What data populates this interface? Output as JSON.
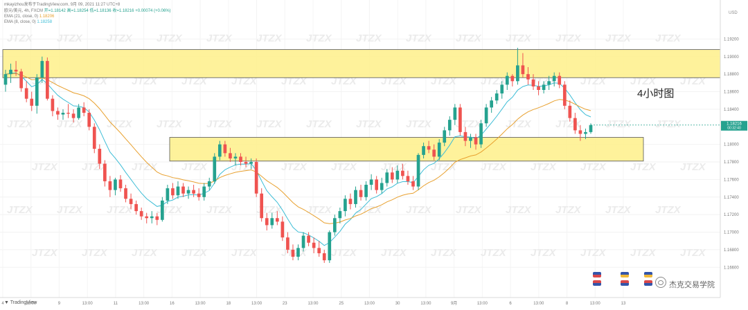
{
  "header": {
    "line1_publisher": "mkayizhou发布于TradingView.com,",
    "line1_date": "9月 09, 2021 11:27 UTC+8",
    "line2_symbol": "欧元/美元, 4h, FXCM",
    "line2_open": "开=1.18142",
    "line2_high": "高=1.18254",
    "line2_low": "低=1.18136",
    "line2_close": "收=1.18216",
    "line2_change": "+0.00074 (+0.06%)",
    "line3_ema21_label": "EMA (21, close, 0)",
    "line3_ema21_value": "1.18206",
    "line4_ema8_label": "EMA (8, close, 0)",
    "line4_ema8_value": "1.18258"
  },
  "annotation": "4小时图",
  "footer_brand": "TradingView",
  "watermark": {
    "text": "JTZX",
    "brand_text": "杰克交易学院"
  },
  "price_badge": {
    "price": "1.18216",
    "countdown": "00:32:40"
  },
  "colors": {
    "up": "#25a28f",
    "down": "#ef5350",
    "ema8": "#3dbdd6",
    "ema21": "#e8a02e",
    "zone_fill": "#fef08a",
    "zone_border": "#555555"
  },
  "chart_data": {
    "type": "candlestick",
    "symbol": "欧元/美元",
    "timeframe": "4h",
    "ylim": [
      1.1635,
      1.1955
    ],
    "scale_unit": "USD",
    "y_ticks": [
      "1.19200",
      "1.19000",
      "1.18800",
      "1.18600",
      "1.18400",
      "1.18000",
      "1.17800",
      "1.17600",
      "1.17400",
      "1.17200",
      "1.17000",
      "1.16800",
      "1.16600"
    ],
    "x_ticks": [
      "4",
      "13:00",
      "9",
      "13:00",
      "11",
      "13:00",
      "16",
      "13:00",
      "18",
      "13:00",
      "23",
      "13:00",
      "25",
      "13:00",
      "30",
      "13:00",
      "9月",
      "13:00",
      "6",
      "13:00",
      "8",
      "13:00",
      "13"
    ],
    "zones": [
      {
        "name": "resistance",
        "high": 1.1908,
        "low": 1.1876
      },
      {
        "name": "support",
        "high": 1.1808,
        "low": 1.1781
      }
    ],
    "ema": [
      {
        "name": "EMA (8, close, 0)"
      },
      {
        "name": "EMA (21, close, 0)"
      }
    ],
    "ohlc": [
      [
        1.1868,
        1.1885,
        1.186,
        1.188
      ],
      [
        1.188,
        1.1892,
        1.187,
        1.1885
      ],
      [
        1.1885,
        1.1895,
        1.1878,
        1.1883
      ],
      [
        1.1883,
        1.1886,
        1.186,
        1.1864
      ],
      [
        1.1864,
        1.1872,
        1.1848,
        1.1852
      ],
      [
        1.1852,
        1.186,
        1.1838,
        1.1844
      ],
      [
        1.1844,
        1.188,
        1.1835,
        1.1876
      ],
      [
        1.1876,
        1.19,
        1.187,
        1.1895
      ],
      [
        1.1895,
        1.1899,
        1.185,
        1.1852
      ],
      [
        1.1852,
        1.1856,
        1.1832,
        1.1838
      ],
      [
        1.1838,
        1.1842,
        1.1828,
        1.1834
      ],
      [
        1.1834,
        1.184,
        1.1828,
        1.1836
      ],
      [
        1.1836,
        1.1846,
        1.183,
        1.1835
      ],
      [
        1.1835,
        1.184,
        1.1825,
        1.183
      ],
      [
        1.183,
        1.1846,
        1.1828,
        1.1842
      ],
      [
        1.1842,
        1.1848,
        1.1832,
        1.1836
      ],
      [
        1.1836,
        1.184,
        1.1816,
        1.182
      ],
      [
        1.182,
        1.1824,
        1.179,
        1.1795
      ],
      [
        1.1795,
        1.18,
        1.1772,
        1.1778
      ],
      [
        1.1778,
        1.1782,
        1.1752,
        1.1758
      ],
      [
        1.1758,
        1.1764,
        1.174,
        1.1748
      ],
      [
        1.1748,
        1.1762,
        1.1742,
        1.176
      ],
      [
        1.176,
        1.1765,
        1.1746,
        1.175
      ],
      [
        1.175,
        1.1754,
        1.1734,
        1.1738
      ],
      [
        1.1738,
        1.1744,
        1.1726,
        1.1732
      ],
      [
        1.1732,
        1.1736,
        1.172,
        1.1724
      ],
      [
        1.1724,
        1.1728,
        1.1714,
        1.1718
      ],
      [
        1.1718,
        1.1722,
        1.171,
        1.1716
      ],
      [
        1.1716,
        1.1724,
        1.171,
        1.1718
      ],
      [
        1.1718,
        1.1722,
        1.1708,
        1.1714
      ],
      [
        1.1714,
        1.174,
        1.1712,
        1.1736
      ],
      [
        1.1736,
        1.1754,
        1.1732,
        1.175
      ],
      [
        1.175,
        1.1756,
        1.1738,
        1.1742
      ],
      [
        1.1742,
        1.1758,
        1.1738,
        1.1752
      ],
      [
        1.1752,
        1.1756,
        1.174,
        1.1744
      ],
      [
        1.1744,
        1.1752,
        1.1738,
        1.1748
      ],
      [
        1.1748,
        1.1754,
        1.174,
        1.1744
      ],
      [
        1.1744,
        1.175,
        1.1736,
        1.174
      ],
      [
        1.174,
        1.1756,
        1.1736,
        1.1752
      ],
      [
        1.1752,
        1.1762,
        1.1748,
        1.1758
      ],
      [
        1.1758,
        1.179,
        1.1755,
        1.1786
      ],
      [
        1.1786,
        1.1804,
        1.1782,
        1.18
      ],
      [
        1.18,
        1.1804,
        1.1786,
        1.179
      ],
      [
        1.179,
        1.1796,
        1.178,
        1.1784
      ],
      [
        1.1784,
        1.179,
        1.1776,
        1.1786
      ],
      [
        1.1786,
        1.179,
        1.1776,
        1.178
      ],
      [
        1.178,
        1.1786,
        1.1774,
        1.1778
      ],
      [
        1.1778,
        1.1784,
        1.1772,
        1.178
      ],
      [
        1.178,
        1.1784,
        1.174,
        1.1744
      ],
      [
        1.1744,
        1.175,
        1.1712,
        1.1716
      ],
      [
        1.1716,
        1.1722,
        1.1702,
        1.1708
      ],
      [
        1.1708,
        1.1722,
        1.1704,
        1.1716
      ],
      [
        1.1716,
        1.1724,
        1.1708,
        1.1712
      ],
      [
        1.1712,
        1.1718,
        1.169,
        1.1694
      ],
      [
        1.1694,
        1.17,
        1.1676,
        1.168
      ],
      [
        1.168,
        1.1686,
        1.1668,
        1.1672
      ],
      [
        1.1672,
        1.1686,
        1.1668,
        1.1682
      ],
      [
        1.1682,
        1.17,
        1.1678,
        1.1696
      ],
      [
        1.1696,
        1.17,
        1.1684,
        1.1688
      ],
      [
        1.1688,
        1.1694,
        1.1676,
        1.1682
      ],
      [
        1.1682,
        1.169,
        1.1672,
        1.1676
      ],
      [
        1.1676,
        1.168,
        1.1665,
        1.1668
      ],
      [
        1.1668,
        1.1702,
        1.1665,
        1.17
      ],
      [
        1.17,
        1.172,
        1.1696,
        1.1716
      ],
      [
        1.1716,
        1.1728,
        1.171,
        1.1724
      ],
      [
        1.1724,
        1.1742,
        1.1718,
        1.1738
      ],
      [
        1.1738,
        1.1744,
        1.1726,
        1.1732
      ],
      [
        1.1732,
        1.1752,
        1.1728,
        1.1748
      ],
      [
        1.1748,
        1.1754,
        1.1736,
        1.174
      ],
      [
        1.174,
        1.1758,
        1.1736,
        1.1754
      ],
      [
        1.1754,
        1.1766,
        1.1748,
        1.176
      ],
      [
        1.176,
        1.1764,
        1.1744,
        1.1748
      ],
      [
        1.1748,
        1.1762,
        1.1744,
        1.1756
      ],
      [
        1.1756,
        1.1772,
        1.1752,
        1.1768
      ],
      [
        1.1768,
        1.1774,
        1.1756,
        1.176
      ],
      [
        1.176,
        1.1776,
        1.1756,
        1.177
      ],
      [
        1.177,
        1.1778,
        1.176,
        1.1764
      ],
      [
        1.1764,
        1.177,
        1.1754,
        1.1758
      ],
      [
        1.1758,
        1.1764,
        1.1748,
        1.1752
      ],
      [
        1.1752,
        1.179,
        1.1748,
        1.1788
      ],
      [
        1.1788,
        1.1802,
        1.1784,
        1.1798
      ],
      [
        1.1798,
        1.1804,
        1.179,
        1.1794
      ],
      [
        1.1794,
        1.18,
        1.1782,
        1.1786
      ],
      [
        1.1786,
        1.1806,
        1.1782,
        1.1802
      ],
      [
        1.1802,
        1.182,
        1.1798,
        1.1816
      ],
      [
        1.1816,
        1.1832,
        1.181,
        1.1828
      ],
      [
        1.1828,
        1.1846,
        1.1822,
        1.1842
      ],
      [
        1.1842,
        1.1846,
        1.181,
        1.1814
      ],
      [
        1.1814,
        1.182,
        1.1798,
        1.1804
      ],
      [
        1.1804,
        1.1812,
        1.1796,
        1.1808
      ],
      [
        1.1808,
        1.1812,
        1.1794,
        1.18
      ],
      [
        1.18,
        1.1828,
        1.1796,
        1.1824
      ],
      [
        1.1824,
        1.1846,
        1.182,
        1.1842
      ],
      [
        1.1842,
        1.1854,
        1.1836,
        1.185
      ],
      [
        1.185,
        1.1862,
        1.1846,
        1.1858
      ],
      [
        1.1858,
        1.1872,
        1.1852,
        1.1868
      ],
      [
        1.1868,
        1.1882,
        1.1862,
        1.1878
      ],
      [
        1.1878,
        1.188,
        1.1866,
        1.1872
      ],
      [
        1.1872,
        1.191,
        1.1868,
        1.189
      ],
      [
        1.189,
        1.1904,
        1.1876,
        1.188
      ],
      [
        1.188,
        1.1888,
        1.1868,
        1.1874
      ],
      [
        1.1874,
        1.188,
        1.1862,
        1.1866
      ],
      [
        1.1866,
        1.1872,
        1.1856,
        1.1862
      ],
      [
        1.1862,
        1.1872,
        1.1858,
        1.1868
      ],
      [
        1.1868,
        1.1878,
        1.1862,
        1.1872
      ],
      [
        1.1872,
        1.1882,
        1.1866,
        1.1878
      ],
      [
        1.1878,
        1.1882,
        1.1864,
        1.1868
      ],
      [
        1.1868,
        1.1872,
        1.184,
        1.1844
      ],
      [
        1.1844,
        1.185,
        1.1826,
        1.183
      ],
      [
        1.183,
        1.1836,
        1.1812,
        1.1816
      ],
      [
        1.1816,
        1.1822,
        1.1804,
        1.1812
      ],
      [
        1.1812,
        1.1818,
        1.1806,
        1.1814
      ],
      [
        1.1814,
        1.1824,
        1.1812,
        1.1822
      ]
    ]
  }
}
